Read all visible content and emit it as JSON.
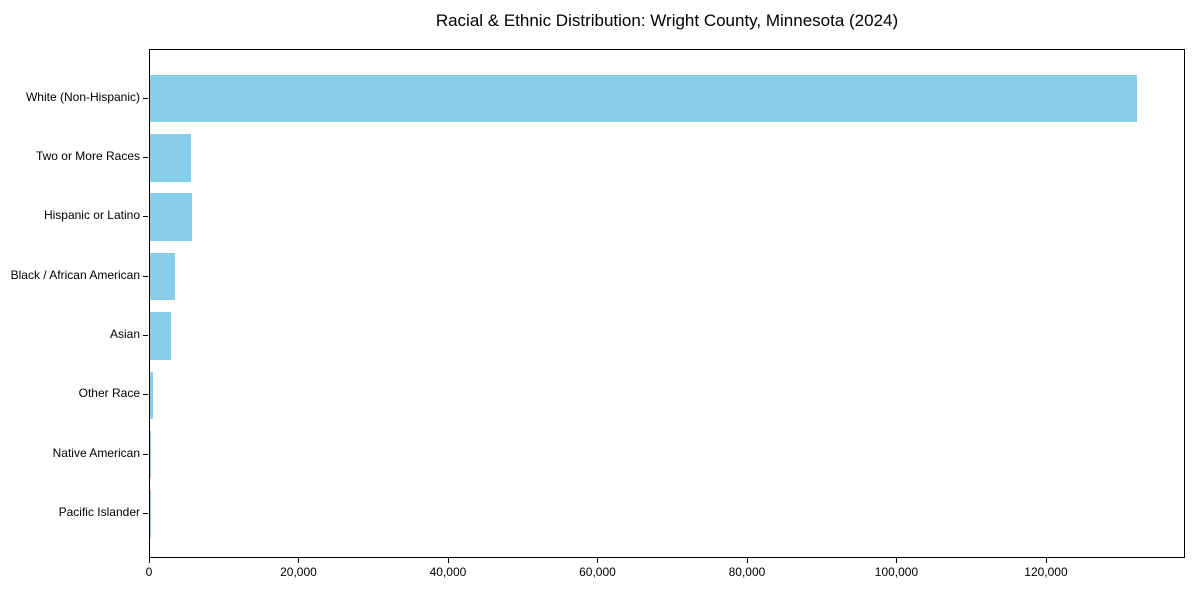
{
  "title": "Racial & Ethnic Distribution: Wright County, Minnesota (2024)",
  "chart_data": {
    "type": "bar",
    "orientation": "horizontal",
    "title": "Racial & Ethnic Distribution: Wright County, Minnesota (2024)",
    "xlabel": "",
    "ylabel": "",
    "categories": [
      "White (Non-Hispanic)",
      "Two or More Races",
      "Hispanic or Latino",
      "Black / African American",
      "Asian",
      "Other Race",
      "Native American",
      "Pacific Islander"
    ],
    "values": [
      132000,
      5480,
      5600,
      3340,
      2810,
      400,
      120,
      30
    ],
    "xlim": [
      0,
      138600
    ],
    "xticks": [
      0,
      20000,
      40000,
      60000,
      80000,
      100000,
      120000
    ],
    "xtick_labels": [
      "0",
      "20,000",
      "40,000",
      "60,000",
      "80,000",
      "100,000",
      "120,000"
    ],
    "bar_color": "#87CEEB",
    "axis_color": "#000000",
    "background_color": "#ffffff",
    "grid": false,
    "legend": null
  }
}
